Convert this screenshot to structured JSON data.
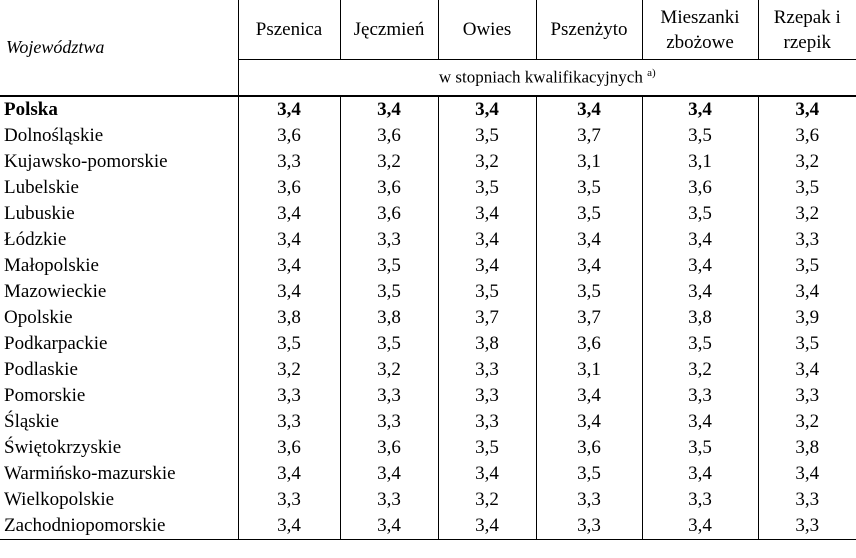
{
  "header": {
    "region": "Województwa",
    "crops": [
      "Pszenica",
      "Jęczmień",
      "Owies",
      "Pszenżyto",
      "Mieszanki zbożowe",
      "Rzepak i rzepik"
    ],
    "unit": "w stopniach kwalifikacyjnych",
    "unit_note": "a)"
  },
  "rows": [
    {
      "name": "Polska",
      "values": [
        "3,4",
        "3,4",
        "3,4",
        "3,4",
        "3,4",
        "3,4"
      ],
      "bold": true
    },
    {
      "name": "Dolnośląskie",
      "values": [
        "3,6",
        "3,6",
        "3,5",
        "3,7",
        "3,5",
        "3,6"
      ]
    },
    {
      "name": "Kujawsko-pomorskie",
      "values": [
        "3,3",
        "3,2",
        "3,2",
        "3,1",
        "3,1",
        "3,2"
      ]
    },
    {
      "name": "Lubelskie",
      "values": [
        "3,6",
        "3,6",
        "3,5",
        "3,5",
        "3,6",
        "3,5"
      ]
    },
    {
      "name": "Lubuskie",
      "values": [
        "3,4",
        "3,6",
        "3,4",
        "3,5",
        "3,5",
        "3,2"
      ]
    },
    {
      "name": "Łódzkie",
      "values": [
        "3,4",
        "3,3",
        "3,4",
        "3,4",
        "3,4",
        "3,3"
      ]
    },
    {
      "name": "Małopolskie",
      "values": [
        "3,4",
        "3,5",
        "3,4",
        "3,4",
        "3,4",
        "3,5"
      ]
    },
    {
      "name": "Mazowieckie",
      "values": [
        "3,4",
        "3,5",
        "3,5",
        "3,5",
        "3,4",
        "3,4"
      ]
    },
    {
      "name": "Opolskie",
      "values": [
        "3,8",
        "3,8",
        "3,7",
        "3,7",
        "3,8",
        "3,9"
      ]
    },
    {
      "name": "Podkarpackie",
      "values": [
        "3,5",
        "3,5",
        "3,8",
        "3,6",
        "3,5",
        "3,5"
      ]
    },
    {
      "name": "Podlaskie",
      "values": [
        "3,2",
        "3,2",
        "3,3",
        "3,1",
        "3,2",
        "3,4"
      ]
    },
    {
      "name": "Pomorskie",
      "values": [
        "3,3",
        "3,3",
        "3,3",
        "3,4",
        "3,3",
        "3,3"
      ]
    },
    {
      "name": "Śląskie",
      "values": [
        "3,3",
        "3,3",
        "3,3",
        "3,4",
        "3,4",
        "3,2"
      ]
    },
    {
      "name": "Świętokrzyskie",
      "values": [
        "3,6",
        "3,6",
        "3,5",
        "3,6",
        "3,5",
        "3,8"
      ]
    },
    {
      "name": "Warmińsko-mazurskie",
      "values": [
        "3,4",
        "3,4",
        "3,4",
        "3,5",
        "3,4",
        "3,4"
      ]
    },
    {
      "name": "Wielkopolskie",
      "values": [
        "3,3",
        "3,3",
        "3,2",
        "3,3",
        "3,3",
        "3,3"
      ]
    },
    {
      "name": "Zachodniopomorskie",
      "values": [
        "3,4",
        "3,4",
        "3,4",
        "3,3",
        "3,4",
        "3,3"
      ]
    }
  ]
}
